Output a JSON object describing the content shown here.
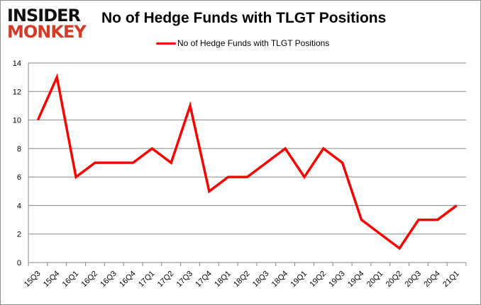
{
  "logo": {
    "line1": "INSIDER",
    "line2": "MONKEY"
  },
  "chart_data": {
    "type": "line",
    "title": "No of Hedge Funds with TLGT Positions",
    "xlabel": "",
    "ylabel": "",
    "categories": [
      "15Q3",
      "15Q4",
      "16Q1",
      "16Q2",
      "16Q3",
      "16Q4",
      "17Q1",
      "17Q2",
      "17Q3",
      "17Q4",
      "18Q1",
      "18Q2",
      "18Q3",
      "18Q4",
      "19Q1",
      "19Q2",
      "19Q3",
      "19Q4",
      "20Q1",
      "20Q2",
      "20Q3",
      "20Q4",
      "21Q1"
    ],
    "series": [
      {
        "name": "No of Hedge Funds with TLGT Positions",
        "color": "#ff0000",
        "values": [
          10,
          13,
          6,
          7,
          7,
          7,
          8,
          7,
          11,
          5,
          6,
          6,
          7,
          8,
          6,
          8,
          7,
          3,
          2,
          1,
          3,
          3,
          4
        ]
      }
    ],
    "ylim": [
      0,
      14
    ],
    "yticks": [
      0,
      2,
      4,
      6,
      8,
      10,
      12,
      14
    ],
    "grid": true,
    "legend": "top"
  }
}
